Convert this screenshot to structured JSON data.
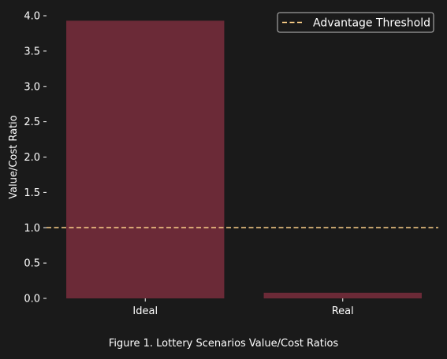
{
  "caption": "Figure 1. Lottery Scenarios Value/Cost Ratios",
  "colors": {
    "background": "#1a1a1a",
    "bar": "#6b2a37",
    "threshold": "#ffd28a",
    "text": "#ffffff"
  },
  "chart_data": {
    "type": "bar",
    "categories": [
      "Ideal",
      "Real"
    ],
    "values": [
      3.93,
      0.08
    ],
    "xlabel": "",
    "ylabel": "Value/Cost Ratio",
    "ylim": [
      0,
      4.0
    ],
    "yticks": [
      "0.0",
      "0.5",
      "1.0",
      "1.5",
      "2.0",
      "2.5",
      "3.0",
      "3.5",
      "4.0"
    ],
    "grid": false,
    "threshold": {
      "name": "Advantage Threshold",
      "value": 1.0,
      "style": "dashed"
    },
    "legend": {
      "placement": "top-right",
      "entries": [
        "Advantage Threshold"
      ]
    }
  }
}
